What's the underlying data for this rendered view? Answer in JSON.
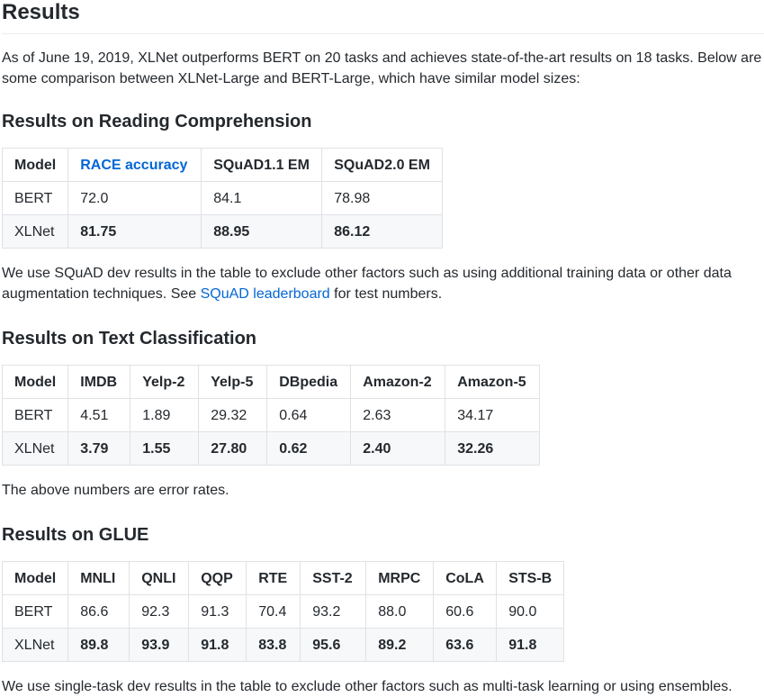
{
  "title": "Results",
  "intro": "As of June 19, 2019, XLNet outperforms BERT on 20 tasks and achieves state-of-the-art results on 18 tasks. Below are some comparison between XLNet-Large and BERT-Large, which have similar model sizes:",
  "reading": {
    "heading": "Results on Reading Comprehension",
    "headers": [
      "Model",
      "RACE accuracy",
      "SQuAD1.1 EM",
      "SQuAD2.0 EM"
    ],
    "rows": [
      [
        "BERT",
        "72.0",
        "84.1",
        "78.98"
      ],
      [
        "XLNet",
        "81.75",
        "88.95",
        "86.12"
      ]
    ],
    "note_before": "We use SQuAD dev results in the table to exclude other factors such as using additional training data or other data augmentation techniques. See ",
    "note_link": "SQuAD leaderboard",
    "note_after": " for test numbers."
  },
  "textcls": {
    "heading": "Results on Text Classification",
    "headers": [
      "Model",
      "IMDB",
      "Yelp-2",
      "Yelp-5",
      "DBpedia",
      "Amazon-2",
      "Amazon-5"
    ],
    "rows": [
      [
        "BERT",
        "4.51",
        "1.89",
        "29.32",
        "0.64",
        "2.63",
        "34.17"
      ],
      [
        "XLNet",
        "3.79",
        "1.55",
        "27.80",
        "0.62",
        "2.40",
        "32.26"
      ]
    ],
    "note": "The above numbers are error rates."
  },
  "glue": {
    "heading": "Results on GLUE",
    "headers": [
      "Model",
      "MNLI",
      "QNLI",
      "QQP",
      "RTE",
      "SST-2",
      "MRPC",
      "CoLA",
      "STS-B"
    ],
    "rows": [
      [
        "BERT",
        "86.6",
        "92.3",
        "91.3",
        "70.4",
        "93.2",
        "88.0",
        "60.6",
        "90.0"
      ],
      [
        "XLNet",
        "89.8",
        "93.9",
        "91.8",
        "83.8",
        "95.6",
        "89.2",
        "63.6",
        "91.8"
      ]
    ],
    "note": "We use single-task dev results in the table to exclude other factors such as multi-task learning or using ensembles."
  }
}
